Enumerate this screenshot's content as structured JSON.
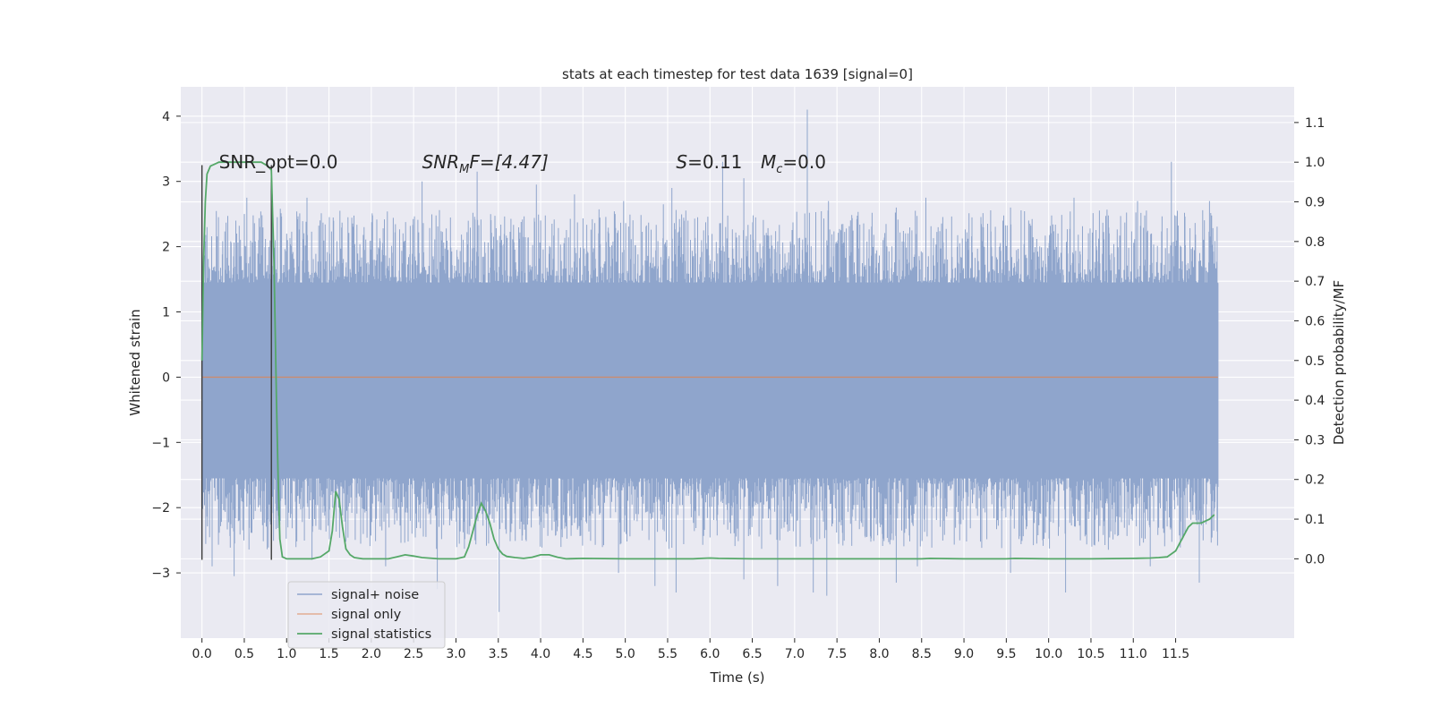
{
  "chart_data": {
    "type": "line",
    "title": "stats at each timestep for test data 1639 [signal=0]",
    "xlabel": "Time (s)",
    "ylabel": "Whitened strain",
    "y2label": "Detection probability/MF",
    "xlim": [
      -0.25,
      12.9
    ],
    "ylim": [
      -4.0,
      4.45
    ],
    "y2lim": [
      -0.2,
      1.19
    ],
    "xticks": [
      0.0,
      0.5,
      1.0,
      1.5,
      2.0,
      2.5,
      3.0,
      3.5,
      4.0,
      4.5,
      5.0,
      5.5,
      6.0,
      6.5,
      7.0,
      7.5,
      8.0,
      8.5,
      9.0,
      9.5,
      10.0,
      10.5,
      11.0,
      11.5
    ],
    "xtick_labels": [
      "0.0",
      "0.5",
      "1.0",
      "1.5",
      "2.0",
      "2.5",
      "3.0",
      "3.5",
      "4.0",
      "4.5",
      "5.0",
      "5.5",
      "6.0",
      "6.5",
      "7.0",
      "7.5",
      "8.0",
      "8.5",
      "9.0",
      "9.5",
      "10.0",
      "10.5",
      "11.0",
      "11.5"
    ],
    "yticks": [
      -3,
      -2,
      -1,
      0,
      1,
      2,
      3,
      4
    ],
    "ytick_labels": [
      "−3",
      "−2",
      "−1",
      "0",
      "1",
      "2",
      "3",
      "4"
    ],
    "y2ticks": [
      0.0,
      0.1,
      0.2,
      0.3,
      0.4,
      0.5,
      0.6,
      0.7,
      0.8,
      0.9,
      1.0,
      1.1
    ],
    "y2tick_labels": [
      "0.0",
      "0.1",
      "0.2",
      "0.3",
      "0.4",
      "0.5",
      "0.6",
      "0.7",
      "0.8",
      "0.9",
      "1.0",
      "1.1"
    ],
    "grid": true,
    "legend_position": "bottom-left",
    "series": [
      {
        "name": "signal+ noise",
        "axis": "left",
        "color": "#8fa5cc",
        "kind": "noise",
        "x_range": [
          0.0,
          12.0
        ],
        "typical_min": -1.55,
        "typical_max": 1.45,
        "peaks_up": [
          [
            0.06,
            2.3
          ],
          [
            0.53,
            2.75
          ],
          [
            0.83,
            2.8
          ],
          [
            1.24,
            2.75
          ],
          [
            1.63,
            2.55
          ],
          [
            2.6,
            3.0
          ],
          [
            3.25,
            3.15
          ],
          [
            3.95,
            2.95
          ],
          [
            4.4,
            2.8
          ],
          [
            4.98,
            2.7
          ],
          [
            5.45,
            2.65
          ],
          [
            5.55,
            2.9
          ],
          [
            6.15,
            3.3
          ],
          [
            6.4,
            3.05
          ],
          [
            7.15,
            4.1
          ],
          [
            7.4,
            2.7
          ],
          [
            8.2,
            2.6
          ],
          [
            8.55,
            2.75
          ],
          [
            9.55,
            2.6
          ],
          [
            10.3,
            2.75
          ],
          [
            11.05,
            2.7
          ],
          [
            11.45,
            3.3
          ],
          [
            11.9,
            2.7
          ]
        ],
        "peaks_down": [
          [
            0.12,
            -2.9
          ],
          [
            0.38,
            -3.05
          ],
          [
            1.3,
            -2.8
          ],
          [
            2.17,
            -2.9
          ],
          [
            2.78,
            -3.25
          ],
          [
            3.51,
            -3.6
          ],
          [
            4.92,
            -3.0
          ],
          [
            5.35,
            -3.2
          ],
          [
            5.6,
            -3.3
          ],
          [
            6.4,
            -3.1
          ],
          [
            6.8,
            -3.2
          ],
          [
            7.22,
            -3.3
          ],
          [
            7.38,
            -3.35
          ],
          [
            8.2,
            -3.15
          ],
          [
            8.45,
            -2.9
          ],
          [
            9.55,
            -3.0
          ],
          [
            10.2,
            -3.3
          ],
          [
            11.2,
            -2.9
          ],
          [
            11.78,
            -3.15
          ]
        ]
      },
      {
        "name": "signal only",
        "axis": "left",
        "color": "#dd8452",
        "x": [
          0.0,
          12.0
        ],
        "y": [
          0.0,
          0.0
        ]
      },
      {
        "name": "signal statistics",
        "axis": "right",
        "color": "#55a868",
        "x": [
          0.0,
          0.02,
          0.04,
          0.06,
          0.1,
          0.15,
          0.2,
          0.3,
          0.4,
          0.5,
          0.6,
          0.7,
          0.78,
          0.82,
          0.85,
          0.88,
          0.9,
          0.92,
          0.95,
          1.0,
          1.05,
          1.1,
          1.2,
          1.3,
          1.4,
          1.5,
          1.54,
          1.58,
          1.62,
          1.66,
          1.7,
          1.75,
          1.8,
          1.9,
          2.0,
          2.2,
          2.3,
          2.4,
          2.5,
          2.6,
          2.8,
          3.0,
          3.1,
          3.15,
          3.2,
          3.25,
          3.3,
          3.35,
          3.4,
          3.45,
          3.5,
          3.55,
          3.6,
          3.7,
          3.8,
          3.9,
          4.0,
          4.1,
          4.2,
          4.3,
          4.5,
          5.0,
          5.5,
          5.8,
          5.9,
          6.0,
          6.1,
          6.5,
          7.0,
          7.5,
          8.0,
          8.5,
          8.6,
          9.0,
          9.5,
          9.6,
          10.0,
          10.5,
          11.0,
          11.2,
          11.3,
          11.4,
          11.5,
          11.55,
          11.6,
          11.65,
          11.7,
          11.8,
          11.9,
          11.95,
          11.96
        ],
        "y": [
          0.5,
          0.75,
          0.9,
          0.97,
          0.99,
          0.995,
          1.0,
          1.0,
          1.0,
          1.0,
          1.0,
          1.0,
          0.99,
          0.98,
          0.75,
          0.4,
          0.2,
          0.05,
          0.005,
          0.0,
          0.0,
          0.0,
          0.0,
          0.0,
          0.005,
          0.02,
          0.07,
          0.17,
          0.15,
          0.08,
          0.025,
          0.01,
          0.003,
          0.0,
          0.0,
          0.0,
          0.005,
          0.01,
          0.007,
          0.003,
          0.0,
          0.0,
          0.005,
          0.03,
          0.07,
          0.11,
          0.14,
          0.12,
          0.09,
          0.05,
          0.025,
          0.012,
          0.006,
          0.003,
          0.001,
          0.004,
          0.01,
          0.01,
          0.004,
          0.0,
          0.001,
          0.0,
          0.0,
          0.0,
          0.001,
          0.002,
          0.001,
          0.0,
          0.0,
          0.0,
          0.0,
          0.0,
          0.001,
          0.0,
          0.0,
          0.001,
          0.0,
          0.0,
          0.001,
          0.002,
          0.003,
          0.005,
          0.02,
          0.04,
          0.06,
          0.08,
          0.09,
          0.09,
          0.1,
          0.11,
          0.11
        ]
      }
    ],
    "vertical_lines": [
      {
        "x": 0.0,
        "y_from": -2.8,
        "y_to": 3.25,
        "color": "#3a3a3a"
      },
      {
        "x": 0.82,
        "y_from": -2.8,
        "y_to": 3.25,
        "color": "#3a3a3a"
      }
    ],
    "annotations": [
      {
        "id": "snr-opt",
        "x": 0.2,
        "y": 3.3,
        "text": "SNR_opt=0.0"
      },
      {
        "id": "snr-mf",
        "x": 2.6,
        "y": 3.3,
        "base": "SNR",
        "sub": "M",
        "rest": "F=[4.47]"
      },
      {
        "id": "stat-s",
        "x": 5.6,
        "y": 3.3,
        "base": "S",
        "rest": "=0.11"
      },
      {
        "id": "mc",
        "x": 6.6,
        "y": 3.3,
        "base": "M",
        "sub": "c",
        "rest": "=0.0"
      }
    ]
  }
}
